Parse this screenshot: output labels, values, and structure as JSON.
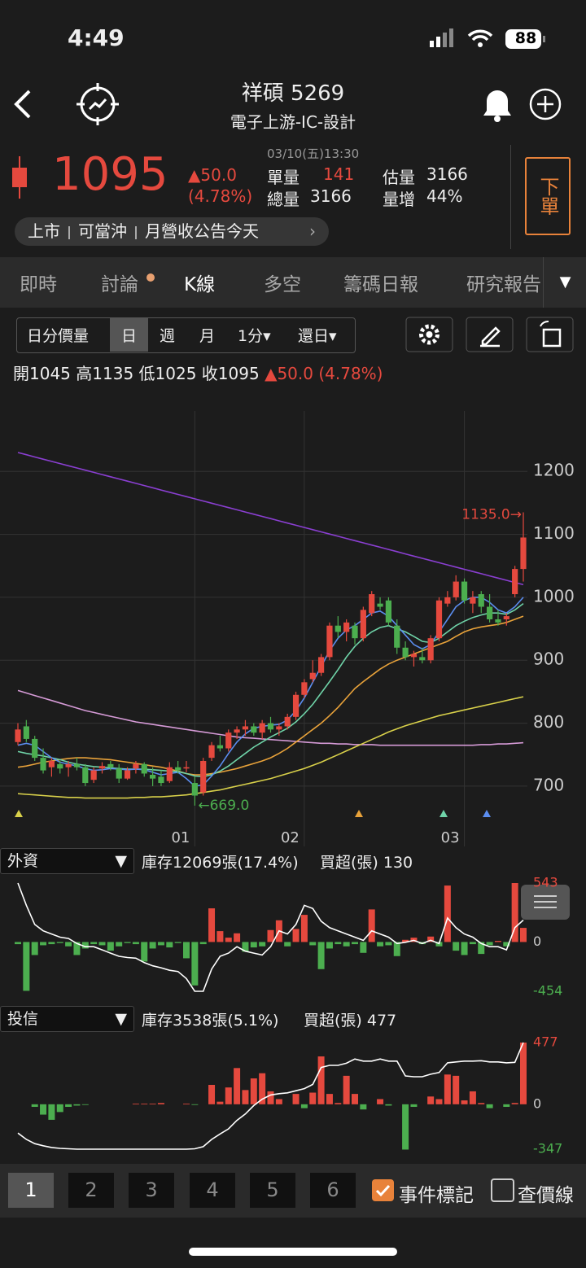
{
  "status_bar": {
    "time": "4:49",
    "battery": "88"
  },
  "header": {
    "title": "祥碩 5269",
    "subtitle": "電子上游-IC-設計"
  },
  "quote": {
    "price": "1095",
    "change": "▲50.0",
    "change_pct": "(4.78%)",
    "datetime": "03/10(五)13:30",
    "stats": [
      {
        "label": "單量",
        "value": "141"
      },
      {
        "label": "總量",
        "value": "3166"
      },
      {
        "label": "估量",
        "value": "3166"
      },
      {
        "label": "量增",
        "value": "44%"
      }
    ],
    "order_button": "下單",
    "tags": [
      "上市",
      "可當沖",
      "月營收公告今天"
    ]
  },
  "tabs": [
    "即時",
    "討論",
    "K線",
    "多空",
    "籌碼日報",
    "研究報告"
  ],
  "toolbar": [
    "日分價量",
    "日",
    "週",
    "月",
    "1分▾",
    "還日▾"
  ],
  "ohlc_labels": [
    "開",
    "高",
    "低",
    "收"
  ],
  "chart_data": [
    {
      "type": "candlestick",
      "categories": [
        null,
        null,
        null,
        null,
        null,
        null,
        null,
        null,
        null,
        null,
        null,
        null,
        null,
        null,
        null,
        null,
        null,
        null,
        null,
        null,
        null,
        "01",
        null,
        null,
        null,
        null,
        null,
        null,
        null,
        null,
        null,
        null,
        null,
        null,
        "02",
        null,
        null,
        null,
        null,
        null,
        null,
        null,
        null,
        null,
        null,
        null,
        null,
        null,
        null,
        null,
        null,
        null,
        null,
        "03",
        null,
        null,
        null,
        null,
        null,
        null,
        null
      ],
      "open": [
        770,
        795,
        775,
        745,
        730,
        735,
        730,
        735,
        730,
        710,
        728,
        735,
        728,
        712,
        728,
        735,
        718,
        715,
        708,
        730,
        728,
        705,
        690,
        745,
        765,
        760,
        785,
        790,
        795,
        785,
        800,
        790,
        795,
        810,
        845,
        870,
        880,
        905,
        955,
        945,
        955,
        935,
        975,
        990,
        995,
        955,
        920,
        905,
        905,
        900,
        935,
        990,
        1000,
        1025,
        990,
        1005,
        985,
        965,
        965,
        1005,
        1045
      ],
      "high": [
        800,
        805,
        780,
        760,
        745,
        740,
        740,
        745,
        735,
        730,
        738,
        740,
        735,
        730,
        740,
        738,
        730,
        725,
        738,
        740,
        740,
        715,
        745,
        770,
        780,
        790,
        795,
        805,
        800,
        805,
        810,
        800,
        815,
        850,
        870,
        900,
        910,
        960,
        970,
        965,
        960,
        985,
        1010,
        1000,
        1000,
        965,
        930,
        915,
        920,
        940,
        1000,
        1010,
        1035,
        1030,
        1010,
        1010,
        1005,
        980,
        975,
        1050,
        1135
      ],
      "low": [
        765,
        770,
        740,
        720,
        715,
        720,
        715,
        725,
        700,
        705,
        720,
        725,
        705,
        710,
        720,
        715,
        700,
        700,
        705,
        720,
        722,
        669,
        685,
        740,
        755,
        755,
        775,
        780,
        780,
        775,
        785,
        780,
        790,
        805,
        840,
        865,
        875,
        900,
        935,
        930,
        925,
        930,
        970,
        980,
        955,
        910,
        900,
        890,
        895,
        895,
        930,
        985,
        995,
        990,
        975,
        975,
        960,
        955,
        955,
        1000,
        1025
      ],
      "close": [
        790,
        775,
        745,
        725,
        740,
        728,
        735,
        730,
        705,
        725,
        732,
        730,
        712,
        725,
        735,
        720,
        712,
        705,
        730,
        725,
        730,
        685,
        740,
        765,
        760,
        785,
        790,
        795,
        785,
        800,
        790,
        795,
        810,
        845,
        865,
        880,
        905,
        955,
        945,
        960,
        935,
        980,
        1005,
        985,
        960,
        920,
        905,
        910,
        900,
        935,
        995,
        1000,
        1025,
        995,
        1000,
        985,
        965,
        960,
        970,
        1045,
        1095
      ],
      "up_color": "#e5493e",
      "down_color": "#4cae4f",
      "series": [
        {
          "color": "#8a3fd1",
          "values": [
            1230,
            1226.5,
            1223,
            1219.5,
            1216,
            1212.5,
            1209,
            1205.5,
            1202,
            1198.5,
            1195,
            1191.5,
            1188,
            1184.5,
            1181,
            1177.5,
            1174,
            1170.5,
            1167,
            1163.5,
            1160,
            1156.5,
            1153,
            1149.5,
            1146,
            1142.5,
            1139,
            1135.5,
            1132,
            1128.5,
            1125,
            1121.5,
            1118,
            1114.5,
            1111,
            1107.5,
            1104,
            1100.5,
            1097,
            1093.5,
            1090,
            1086.5,
            1083,
            1079.5,
            1076,
            1072.5,
            1069,
            1065.5,
            1062,
            1058.5,
            1055,
            1051.5,
            1048,
            1044.5,
            1041,
            1037.5,
            1034,
            1030.5,
            1027,
            1023.5,
            1020
          ]
        },
        {
          "color": "#d59ad6",
          "values": [
            852,
            848,
            844,
            840,
            836,
            832,
            828,
            824,
            820,
            817,
            814,
            811,
            808,
            805,
            802,
            800,
            798,
            796,
            794,
            792,
            790,
            788,
            786,
            784,
            782,
            780,
            778,
            777,
            776,
            775,
            774,
            773,
            772,
            771,
            770,
            769,
            768,
            768,
            767,
            767,
            766,
            766,
            766,
            765,
            765,
            765,
            765,
            765,
            765,
            765,
            765,
            765,
            765,
            765,
            765,
            766,
            766,
            767,
            767,
            768,
            769
          ]
        },
        {
          "color": "#d8d04a",
          "values": [
            688,
            687,
            686,
            685,
            684,
            683,
            682,
            682,
            681,
            681,
            681,
            681,
            681,
            681,
            682,
            682,
            683,
            683,
            684,
            685,
            686,
            688,
            690,
            692,
            694,
            697,
            700,
            703,
            706,
            709,
            712,
            716,
            720,
            724,
            728,
            733,
            738,
            744,
            750,
            756,
            762,
            768,
            774,
            780,
            786,
            791,
            796,
            800,
            804,
            808,
            812,
            815,
            818,
            821,
            824,
            827,
            830,
            833,
            836,
            839,
            842
          ]
        },
        {
          "color": "#e8a23a",
          "values": [
            730,
            732,
            735,
            738,
            740,
            742,
            744,
            745,
            745,
            744,
            743,
            742,
            740,
            738,
            736,
            734,
            732,
            730,
            727,
            724,
            720,
            718,
            718,
            720,
            722,
            725,
            728,
            732,
            736,
            740,
            745,
            752,
            760,
            770,
            780,
            790,
            800,
            812,
            825,
            840,
            855,
            866,
            876,
            886,
            894,
            900,
            905,
            910,
            915,
            920,
            925,
            930,
            938,
            945,
            950,
            953,
            955,
            957,
            960,
            965,
            970
          ]
        },
        {
          "color": "#6fd3a8",
          "values": [
            755,
            752,
            750,
            748,
            745,
            742,
            738,
            735,
            733,
            731,
            730,
            729,
            728,
            727,
            727,
            727,
            726,
            725,
            724,
            723,
            720,
            716,
            715,
            718,
            724,
            732,
            742,
            752,
            762,
            770,
            778,
            785,
            792,
            802,
            815,
            830,
            848,
            866,
            885,
            905,
            922,
            935,
            945,
            952,
            955,
            950,
            945,
            938,
            930,
            928,
            935,
            945,
            955,
            962,
            968,
            972,
            975,
            975,
            973,
            980,
            990
          ]
        },
        {
          "color": "#5b8def",
          "values": [
            765,
            768,
            765,
            755,
            745,
            738,
            735,
            732,
            728,
            725,
            726,
            728,
            727,
            726,
            727,
            726,
            722,
            718,
            720,
            722,
            712,
            700,
            702,
            716,
            732,
            752,
            770,
            783,
            792,
            795,
            797,
            798,
            805,
            820,
            840,
            865,
            890,
            915,
            935,
            948,
            955,
            965,
            975,
            978,
            970,
            955,
            940,
            925,
            918,
            925,
            945,
            965,
            985,
            995,
            1000,
            1000,
            992,
            980,
            975,
            985,
            1000
          ]
        }
      ],
      "annotations": [
        {
          "value": 1135,
          "label": "1135.0→"
        },
        {
          "value": 669,
          "label": "←669.0"
        }
      ],
      "ylim": [
        643,
        1296
      ],
      "yticks": [
        700,
        800,
        900,
        1000,
        1100,
        1200
      ]
    },
    {
      "type": "bar",
      "selector": "外資",
      "inventory_label": "庫存12069張(17.4%)",
      "net_label": "買超(張)",
      "values": [
        -20,
        -450,
        -120,
        -30,
        -20,
        -10,
        -40,
        -120,
        -60,
        -20,
        -30,
        -80,
        -40,
        -10,
        -20,
        -180,
        -60,
        -30,
        -50,
        -10,
        -150,
        -400,
        -20,
        310,
        100,
        40,
        80,
        -90,
        -50,
        -40,
        110,
        200,
        -40,
        120,
        250,
        -30,
        -250,
        -60,
        -20,
        -40,
        -20,
        -100,
        300,
        -40,
        -30,
        -130,
        20,
        40,
        -20,
        50,
        -40,
        520,
        -80,
        -120,
        -20,
        -110,
        -30,
        10,
        -40,
        543,
        130
      ],
      "line": {
        "color": "#ffffff",
        "values": [
          12650,
          12300,
          12000,
          11900,
          11850,
          11800,
          11780,
          11700,
          11650,
          11650,
          11600,
          11550,
          11500,
          11480,
          11470,
          11400,
          11350,
          11320,
          11280,
          11260,
          11150,
          10950,
          10950,
          11300,
          11500,
          11550,
          11650,
          11580,
          11550,
          11520,
          11650,
          11900,
          11850,
          12000,
          12300,
          12250,
          12050,
          11950,
          11900,
          11850,
          11800,
          11750,
          11900,
          11850,
          11800,
          11700,
          11720,
          11750,
          11700,
          11750,
          11700,
          12100,
          11950,
          11850,
          11800,
          11700,
          11650,
          11650,
          11600,
          11950,
          12069
        ]
      },
      "up_color": "#e5493e",
      "down_color": "#4cae4f",
      "ylim": [
        -454,
        543
      ],
      "yticks": [
        -454,
        0,
        543
      ]
    },
    {
      "type": "bar",
      "selector": "投信",
      "inventory_label": "庫存3538張(5.1%)",
      "net_label": "買超(張)",
      "values": [
        0,
        0,
        -20,
        -80,
        -120,
        -60,
        -20,
        -10,
        -5,
        0,
        0,
        0,
        0,
        0,
        5,
        5,
        5,
        10,
        0,
        0,
        5,
        -5,
        0,
        150,
        20,
        130,
        280,
        110,
        200,
        240,
        100,
        40,
        0,
        80,
        -30,
        90,
        370,
        80,
        10,
        220,
        80,
        -40,
        0,
        40,
        -10,
        0,
        -350,
        -20,
        0,
        60,
        40,
        230,
        220,
        30,
        100,
        10,
        -30,
        0,
        -20,
        10,
        477
      ],
      "line": {
        "color": "#ffffff",
        "values": [
          1400,
          1250,
          1150,
          1100,
          1060,
          1040,
          1030,
          1020,
          1020,
          1020,
          1020,
          1020,
          1020,
          1020,
          1020,
          1020,
          1020,
          1020,
          1020,
          1020,
          1020,
          1030,
          1080,
          1250,
          1380,
          1500,
          1700,
          1850,
          2050,
          2200,
          2300,
          2330,
          2350,
          2400,
          2450,
          2550,
          2950,
          3000,
          3000,
          3050,
          3150,
          3100,
          3100,
          3150,
          3100,
          3100,
          2750,
          2730,
          2730,
          2790,
          2830,
          3060,
          3080,
          3100,
          3100,
          3110,
          3080,
          3080,
          3060,
          3070,
          3538
        ]
      },
      "up_color": "#e5493e",
      "down_color": "#4cae4f",
      "ylim": [
        -347,
        477
      ],
      "yticks": [
        -347,
        0,
        477
      ]
    }
  ],
  "bottom_bar": {
    "pages": [
      "1",
      "2",
      "3",
      "4",
      "5",
      "6"
    ],
    "event_marker": "事件標記",
    "price_line": "查價線"
  }
}
